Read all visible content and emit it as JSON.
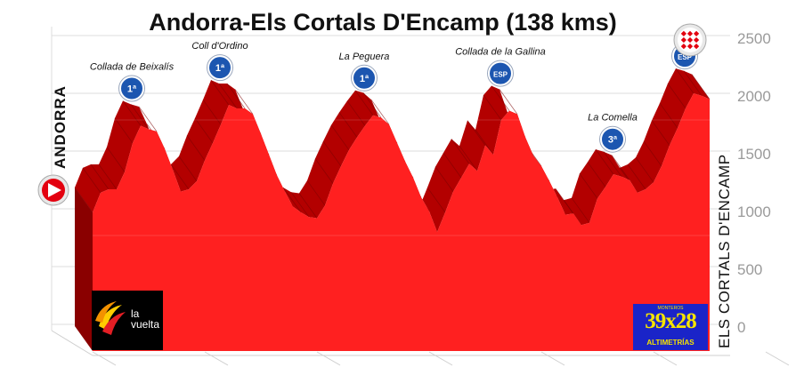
{
  "chart_data": {
    "type": "area",
    "title": "Andorra-Els Cortals D'Encamp (138 kms)",
    "left_label": "ANDORRA",
    "right_label": "ELS CORTALS D'ENCAMP",
    "ylim": [
      0,
      2500
    ],
    "yticks": [
      0,
      500,
      1000,
      1500,
      2000,
      2500
    ],
    "grid": true,
    "fill_color": "#ff2020",
    "side_color": "#b30000",
    "profile": [
      [
        0,
        1200
      ],
      [
        3,
        1370
      ],
      [
        6,
        1400
      ],
      [
        9,
        1400
      ],
      [
        12,
        1550
      ],
      [
        15,
        1800
      ],
      [
        18,
        1950
      ],
      [
        21,
        1920
      ],
      [
        24,
        1900
      ],
      [
        27,
        1750
      ],
      [
        30,
        1570
      ],
      [
        33,
        1380
      ],
      [
        36,
        1400
      ],
      [
        39,
        1470
      ],
      [
        42,
        1650
      ],
      [
        45,
        1800
      ],
      [
        48,
        1960
      ],
      [
        51,
        2130
      ],
      [
        54,
        2100
      ],
      [
        57,
        2100
      ],
      [
        60,
        2050
      ],
      [
        63,
        1880
      ],
      [
        66,
        1700
      ],
      [
        69,
        1520
      ],
      [
        72,
        1380
      ],
      [
        75,
        1250
      ],
      [
        78,
        1200
      ],
      [
        81,
        1160
      ],
      [
        84,
        1150
      ],
      [
        87,
        1260
      ],
      [
        90,
        1450
      ],
      [
        93,
        1600
      ],
      [
        96,
        1740
      ],
      [
        99,
        1850
      ],
      [
        102,
        1950
      ],
      [
        105,
        2040
      ],
      [
        108,
        2020
      ],
      [
        111,
        1960
      ],
      [
        114,
        1800
      ],
      [
        117,
        1640
      ],
      [
        120,
        1500
      ],
      [
        123,
        1330
      ],
      [
        126,
        1210
      ],
      [
        129,
        1030
      ],
      [
        132,
        1200
      ],
      [
        135,
        1380
      ],
      [
        138,
        1500
      ],
      [
        141,
        1620
      ],
      [
        144,
        1560
      ],
      [
        147,
        1780
      ],
      [
        150,
        1700
      ],
      [
        153,
        2000
      ],
      [
        156,
        2080
      ],
      [
        159,
        2050
      ],
      [
        162,
        1850
      ],
      [
        165,
        1690
      ],
      [
        168,
        1600
      ],
      [
        171,
        1470
      ],
      [
        174,
        1330
      ],
      [
        177,
        1180
      ],
      [
        180,
        1190
      ],
      [
        183,
        1090
      ],
      [
        186,
        1110
      ],
      [
        189,
        1320
      ],
      [
        192,
        1420
      ],
      [
        195,
        1530
      ],
      [
        198,
        1510
      ],
      [
        201,
        1480
      ],
      [
        204,
        1370
      ],
      [
        207,
        1400
      ],
      [
        210,
        1460
      ],
      [
        213,
        1600
      ],
      [
        216,
        1780
      ],
      [
        219,
        1930
      ],
      [
        222,
        2100
      ],
      [
        225,
        2230
      ],
      [
        228,
        2210
      ],
      [
        231,
        2180
      ]
    ],
    "summits": [
      {
        "name": "Collada de Beixalís",
        "category": "1ª",
        "at": 18
      },
      {
        "name": "Coll d'Ordino",
        "category": "1ª",
        "at": 51
      },
      {
        "name": "La Peguera",
        "category": "1ª",
        "at": 105
      },
      {
        "name": "Collada de la Gallina",
        "category": "ESP",
        "at": 156
      },
      {
        "name": "La Comella",
        "category": "3ª",
        "at": 198
      },
      {
        "name": "",
        "category": "ESP",
        "at": 225
      }
    ],
    "start_icon": "play-start-icon",
    "finish_icon": "checkered-finish-icon",
    "logos": {
      "vuelta_line1": "la",
      "vuelta_line2": "vuelta",
      "altimetrias_top": "MONTEROS",
      "altimetrias_big": "39x28",
      "altimetrias_bottom": "ALTIMETRÍAS"
    }
  }
}
